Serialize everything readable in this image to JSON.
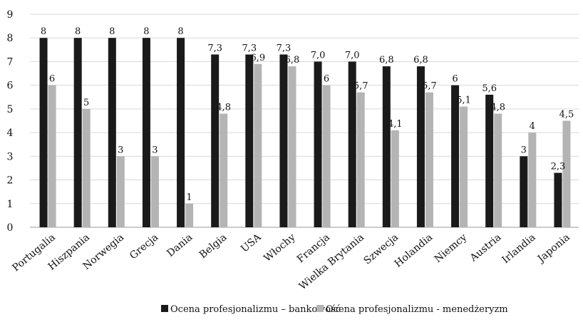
{
  "chart_data": {
    "type": "bar",
    "ylim": [
      0,
      9
    ],
    "yticks": [
      "0",
      "1",
      "2",
      "3",
      "4",
      "5",
      "6",
      "7",
      "8",
      "9"
    ],
    "grid": true,
    "legend_position": "bottom",
    "categories": [
      "Portugalia",
      "Hiszpania",
      "Norwegia",
      "Grecja",
      "Dania",
      "Belgia",
      "USA",
      "Włochy",
      "Francja",
      "Wielka Brytania",
      "Szwecja",
      "Holandia",
      "Niemcy",
      "Austria",
      "Irlandia",
      "Japonia"
    ],
    "series": [
      {
        "name": "Ocena profesjonalizmu – bankowość",
        "color": "#1a1a1a",
        "values": [
          8,
          8,
          8,
          8,
          8,
          7.3,
          7.3,
          7.3,
          7.0,
          7.0,
          6.8,
          6.8,
          6,
          5.6,
          3,
          2.3
        ],
        "labels": [
          "8",
          "8",
          "8",
          "8",
          "8",
          "7,3",
          "7,3",
          "7,3",
          "7,0",
          "7,0",
          "6,8",
          "6,8",
          "6",
          "5,6",
          "3",
          "2,3"
        ]
      },
      {
        "name": "Ocena profesjonalizmu - menedżeryzm",
        "color": "#b4b4b4",
        "values": [
          6,
          5,
          3,
          3,
          1,
          4.8,
          6.9,
          6.8,
          6,
          5.7,
          4.1,
          5.7,
          5.1,
          4.8,
          4,
          4.5
        ],
        "labels": [
          "6",
          "5",
          "3",
          "3",
          "1",
          "4,8",
          "6,9",
          "6,8",
          "6",
          "5,7",
          "4,1",
          "5,7",
          "5,1",
          "4,8",
          "4",
          "4,5"
        ]
      }
    ]
  }
}
